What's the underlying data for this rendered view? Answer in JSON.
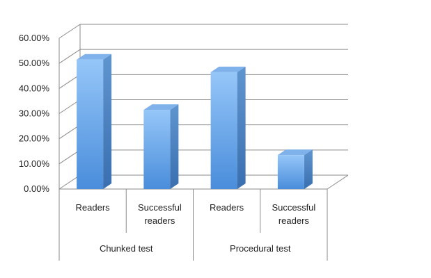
{
  "chart_data": {
    "type": "bar",
    "groups": [
      {
        "label": "Chunked test",
        "categories": [
          "Readers",
          "Successful\nreaders"
        ]
      },
      {
        "label": "Procedural test",
        "categories": [
          "Readers",
          "Successful\nreaders"
        ]
      }
    ],
    "values": [
      51.5,
      31.5,
      46.5,
      13.5
    ],
    "y_ticks": [
      "0.00%",
      "10.00%",
      "20.00%",
      "30.00%",
      "40.00%",
      "50.00%",
      "60.00%"
    ],
    "ylim": [
      0,
      60
    ],
    "grid": true,
    "bar_color_light": "#8fc1f6",
    "bar_color_dark": "#4f90dc",
    "grid_color": "#8a8a8a"
  }
}
